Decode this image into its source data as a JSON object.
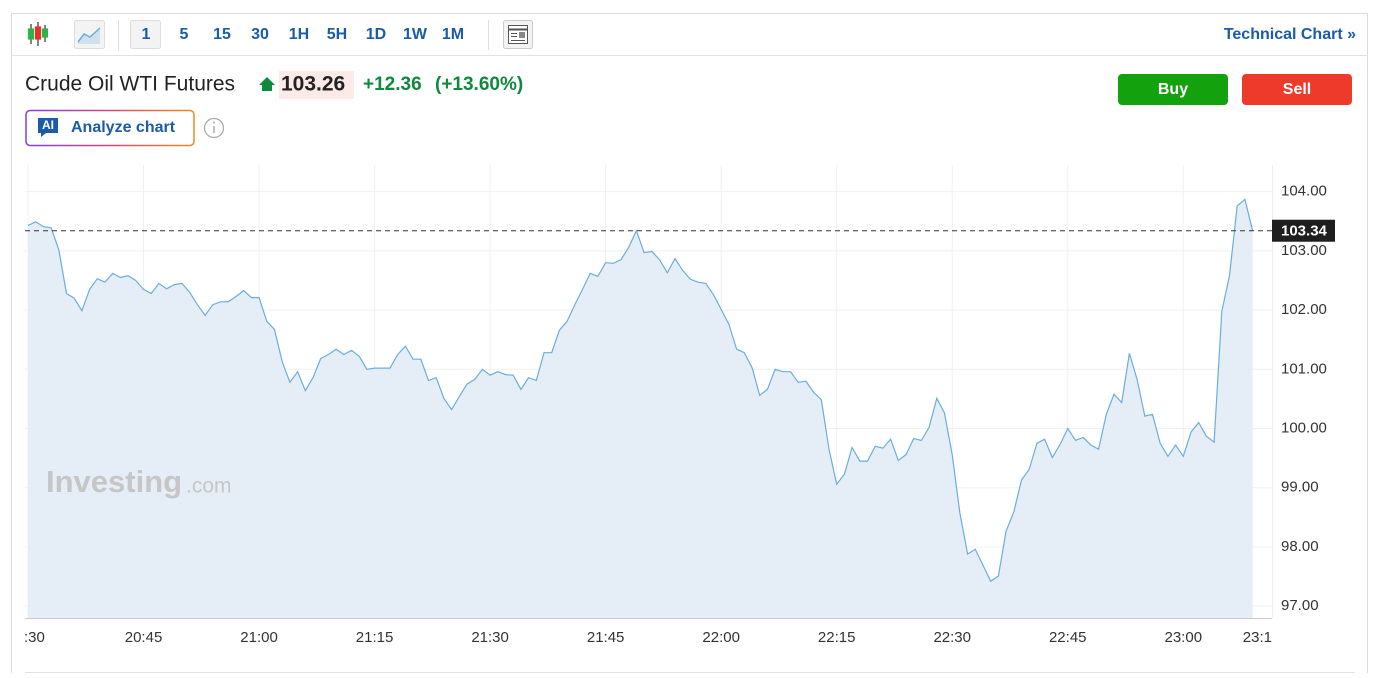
{
  "toolbar": {
    "intervals": [
      "1",
      "5",
      "15",
      "30",
      "1H",
      "5H",
      "1D",
      "1W",
      "1M"
    ],
    "technical_chart": "Technical Chart »"
  },
  "header": {
    "title": "Crude Oil WTI Futures",
    "price": "103.26",
    "change": "+12.36",
    "change_percent": "(+13.60%)",
    "buy": "Buy",
    "sell": "Sell",
    "ai_badge": "AI",
    "analyze": "Analyze chart"
  },
  "watermark": {
    "brand": "Investing",
    "suffix": ".com"
  },
  "chart_data": {
    "type": "area",
    "x": [
      "20:30",
      "20:31",
      "20:32",
      "20:33",
      "20:34",
      "20:35",
      "20:36",
      "20:37",
      "20:38",
      "20:39",
      "20:40",
      "20:41",
      "20:42",
      "20:43",
      "20:44",
      "20:45",
      "20:46",
      "20:47",
      "20:48",
      "20:49",
      "20:50",
      "20:51",
      "20:52",
      "20:53",
      "20:54",
      "20:55",
      "20:56",
      "20:57",
      "20:58",
      "20:59",
      "21:00",
      "21:01",
      "21:02",
      "21:03",
      "21:04",
      "21:05",
      "21:06",
      "21:07",
      "21:08",
      "21:09",
      "21:10",
      "21:11",
      "21:12",
      "21:13",
      "21:14",
      "21:15",
      "21:16",
      "21:17",
      "21:18",
      "21:19",
      "21:20",
      "21:21",
      "21:22",
      "21:23",
      "21:24",
      "21:25",
      "21:26",
      "21:27",
      "21:28",
      "21:29",
      "21:30",
      "21:31",
      "21:32",
      "21:33",
      "21:34",
      "21:35",
      "21:36",
      "21:37",
      "21:38",
      "21:39",
      "21:40",
      "21:41",
      "21:42",
      "21:43",
      "21:44",
      "21:45",
      "21:46",
      "21:47",
      "21:48",
      "21:49",
      "21:50",
      "21:51",
      "21:52",
      "21:53",
      "21:54",
      "21:55",
      "21:56",
      "21:57",
      "21:58",
      "21:59",
      "22:00",
      "22:01",
      "22:02",
      "22:03",
      "22:04",
      "22:05",
      "22:06",
      "22:07",
      "22:08",
      "22:09",
      "22:10",
      "22:11",
      "22:12",
      "22:13",
      "22:14",
      "22:15",
      "22:16",
      "22:17",
      "22:18",
      "22:19",
      "22:20",
      "22:21",
      "22:22",
      "22:23",
      "22:24",
      "22:25",
      "22:26",
      "22:27",
      "22:28",
      "22:29",
      "22:30",
      "22:31",
      "22:32",
      "22:33",
      "22:34",
      "22:35",
      "22:36",
      "22:37",
      "22:38",
      "22:39",
      "22:40",
      "22:41",
      "22:42",
      "22:43",
      "22:44",
      "22:45",
      "22:46",
      "22:47",
      "22:48",
      "22:49",
      "22:50",
      "22:51",
      "22:52",
      "22:53",
      "22:54",
      "22:55",
      "22:56",
      "22:57",
      "22:58",
      "22:59",
      "23:00",
      "23:01",
      "23:02",
      "23:03",
      "23:04",
      "23:05",
      "23:06",
      "23:07",
      "23:08",
      "23:09"
    ],
    "series": [
      {
        "color": "#6aaedd",
        "fill": "#e5eef6",
        "values": [
          103.43,
          103.49,
          103.41,
          103.39,
          103.02,
          102.28,
          102.2,
          101.99,
          102.35,
          102.53,
          102.47,
          102.62,
          102.55,
          102.58,
          102.5,
          102.35,
          102.28,
          102.45,
          102.36,
          102.43,
          102.45,
          102.3,
          102.09,
          101.91,
          102.09,
          102.14,
          102.14,
          102.23,
          102.33,
          102.21,
          102.21,
          101.81,
          101.67,
          101.13,
          100.78,
          100.96,
          100.64,
          100.86,
          101.18,
          101.25,
          101.34,
          101.25,
          101.32,
          101.22,
          101.0,
          101.02,
          101.02,
          101.02,
          101.25,
          101.39,
          101.17,
          101.17,
          100.81,
          100.86,
          100.51,
          100.32,
          100.54,
          100.75,
          100.83,
          101.0,
          100.9,
          100.96,
          100.91,
          100.9,
          100.66,
          100.86,
          100.81,
          101.28,
          101.28,
          101.66,
          101.81,
          102.09,
          102.35,
          102.62,
          102.57,
          102.8,
          102.79,
          102.85,
          103.06,
          103.34,
          102.97,
          102.99,
          102.85,
          102.63,
          102.87,
          102.67,
          102.52,
          102.47,
          102.45,
          102.26,
          102.01,
          101.76,
          101.34,
          101.28,
          101.03,
          100.56,
          100.66,
          101.0,
          100.96,
          100.96,
          100.78,
          100.8,
          100.61,
          100.49,
          99.65,
          99.06,
          99.23,
          99.68,
          99.45,
          99.45,
          99.7,
          99.67,
          99.82,
          99.46,
          99.56,
          99.83,
          99.8,
          100.02,
          100.51,
          100.26,
          99.56,
          98.57,
          97.88,
          97.96,
          97.69,
          97.42,
          97.51,
          98.27,
          98.59,
          99.13,
          99.31,
          99.75,
          99.82,
          99.51,
          99.73,
          100.0,
          99.8,
          99.85,
          99.72,
          99.65,
          100.24,
          100.58,
          100.44,
          101.27,
          100.83,
          100.21,
          100.24,
          99.75,
          99.53,
          99.72,
          99.53,
          99.94,
          100.1,
          99.87,
          99.77,
          101.98,
          102.58,
          103.76,
          103.87,
          103.34
        ]
      }
    ],
    "last_price": 103.34,
    "xlim": [
      "20:30",
      "23:11"
    ],
    "xticks": [
      {
        "value": "20:30",
        "label": ":30"
      },
      "20:45",
      "21:00",
      "21:15",
      "21:30",
      "21:45",
      "22:00",
      "22:15",
      "22:30",
      "22:45",
      "23:00",
      {
        "value": "23:15",
        "label": "23:1"
      }
    ],
    "ylim": [
      96.8,
      104.45
    ],
    "yticks": [
      {
        "value": 97,
        "label": "97.00"
      },
      {
        "value": 98,
        "label": "98.00"
      },
      {
        "value": 99,
        "label": "99.00"
      },
      {
        "value": 100,
        "label": "100.00"
      },
      {
        "value": 101,
        "label": "101.00"
      },
      {
        "value": 102,
        "label": "102.00"
      },
      {
        "value": 103,
        "label": "103.00"
      },
      {
        "value": 104,
        "label": "104.00"
      }
    ],
    "grid": true
  }
}
